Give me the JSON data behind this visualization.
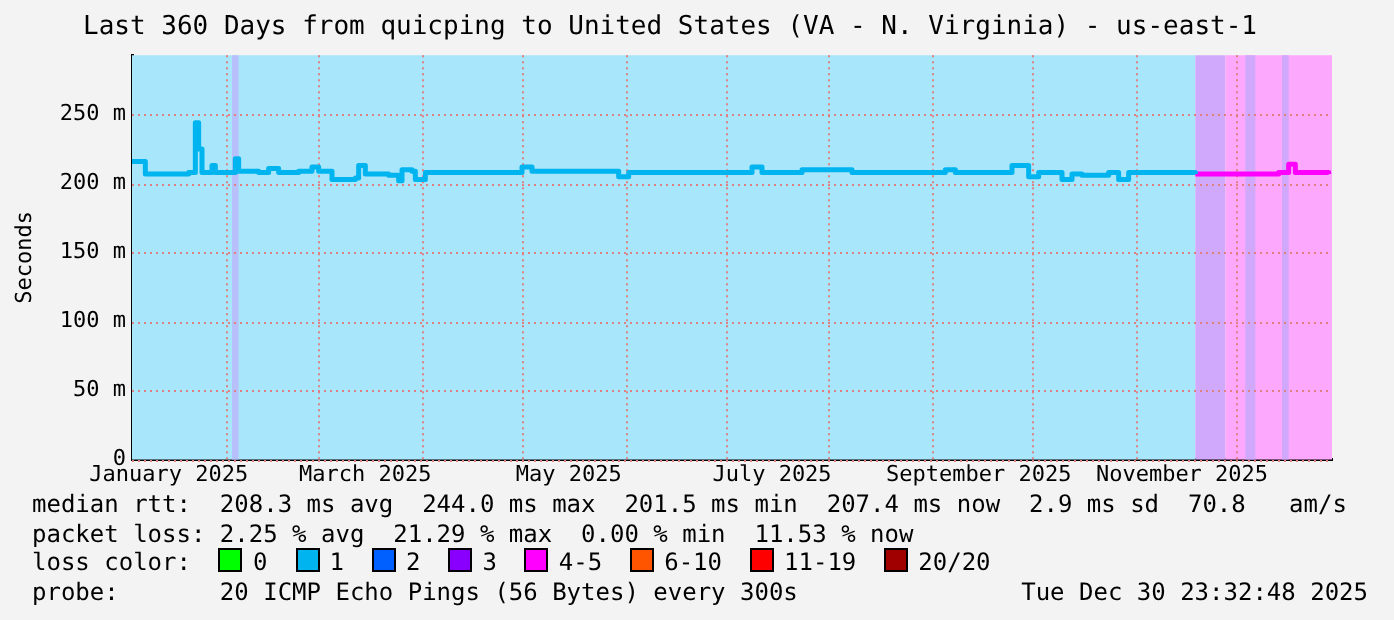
{
  "chart_data": {
    "type": "step",
    "title": "Last 360 Days from quicping to United States (VA - N. Virginia) - us-east-1",
    "ylabel": "Seconds",
    "x": [
      "2025-01-04",
      "2025-01-07",
      "2025-01-08",
      "2025-01-21",
      "2025-01-23",
      "2025-01-24",
      "2025-01-25",
      "2025-01-28",
      "2025-01-29",
      "2025-02-03",
      "2025-02-04",
      "2025-02-05",
      "2025-02-11",
      "2025-02-14",
      "2025-02-17",
      "2025-02-23",
      "2025-02-27",
      "2025-03-01",
      "2025-03-05",
      "2025-03-12",
      "2025-03-13",
      "2025-03-15",
      "2025-03-22",
      "2025-03-25",
      "2025-03-26",
      "2025-03-29",
      "2025-03-30",
      "2025-04-02",
      "2025-05-01",
      "2025-05-04",
      "2025-05-30",
      "2025-06-02",
      "2025-07-09",
      "2025-07-12",
      "2025-07-24",
      "2025-08-08",
      "2025-09-05",
      "2025-09-08",
      "2025-09-25",
      "2025-09-30",
      "2025-10-03",
      "2025-10-10",
      "2025-10-13",
      "2025-10-16",
      "2025-10-24",
      "2025-10-27",
      "2025-10-30",
      "2025-11-19"
    ],
    "series": [
      {
        "color": "#00b4f0",
        "values": [
          216,
          216,
          207,
          208,
          244,
          225,
          208,
          213,
          208,
          208,
          218,
          209,
          208,
          211,
          208,
          209,
          212,
          209,
          203,
          204,
          213,
          207,
          206,
          202,
          210,
          209,
          203,
          208,
          212,
          209,
          205,
          208,
          212,
          208,
          210,
          208,
          210,
          208,
          213,
          205,
          208,
          203,
          207,
          206,
          208,
          203,
          208,
          207
        ]
      },
      {
        "color": "#ff00ff",
        "x": [
          "2025-11-19",
          "2025-12-14",
          "2025-12-17",
          "2025-12-19",
          "2025-12-29"
        ],
        "values": [
          207,
          208,
          214,
          208,
          207
        ]
      }
    ],
    "xlim": [
      "2025-01-04",
      "2025-12-30"
    ],
    "xticks": [
      {
        "value": "2025-01-15",
        "label": "January 2025"
      },
      {
        "value": "2025-02-01",
        "label": null
      },
      {
        "value": "2025-03-01",
        "label": null
      },
      {
        "value": "2025-03-15",
        "label": "March 2025"
      },
      {
        "value": "2025-04-01",
        "label": null
      },
      {
        "value": "2025-05-01",
        "label": null
      },
      {
        "value": "2025-05-15",
        "label": "May 2025"
      },
      {
        "value": "2025-06-01",
        "label": null
      },
      {
        "value": "2025-07-01",
        "label": null
      },
      {
        "value": "2025-07-15",
        "label": "July 2025"
      },
      {
        "value": "2025-08-01",
        "label": null
      },
      {
        "value": "2025-09-01",
        "label": null
      },
      {
        "value": "2025-09-15",
        "label": "September 2025"
      },
      {
        "value": "2025-10-01",
        "label": null
      },
      {
        "value": "2025-11-01",
        "label": null
      },
      {
        "value": "2025-11-15",
        "label": "November 2025"
      },
      {
        "value": "2025-12-01",
        "label": null
      }
    ],
    "ylim": [
      0,
      293
    ],
    "yticks": [
      0,
      {
        "value": 50,
        "label": "50 m"
      },
      {
        "value": 100,
        "label": "100 m"
      },
      {
        "value": 150,
        "label": "150 m"
      },
      {
        "value": 200,
        "label": "200 m"
      },
      {
        "value": 250,
        "label": "250 m"
      }
    ],
    "bands": [
      {
        "axis": "x",
        "from": "2025-01-04",
        "to": "2025-11-19",
        "color": "#a8e6fc"
      },
      {
        "axis": "x",
        "from": "2025-02-03",
        "to": "2025-02-05",
        "color": "#b8c0fc"
      },
      {
        "axis": "x",
        "from": "2025-11-19",
        "to": "2025-11-28",
        "color": "#d0a8fc"
      },
      {
        "axis": "x",
        "from": "2025-11-28",
        "to": "2025-12-30",
        "color": "#fca8fc"
      },
      {
        "axis": "x",
        "from": "2025-12-04",
        "to": "2025-12-07",
        "color": "#d0a8fc"
      },
      {
        "axis": "x",
        "from": "2025-12-15",
        "to": "2025-12-17",
        "color": "#d0a8fc"
      }
    ],
    "grid": true,
    "legend": false,
    "marker": "none",
    "line_style": "solid",
    "annotations": [
      "median rtt:  208.3 ms avg  244.0 ms max  201.5 ms min  207.4 ms now  2.9 ms sd  70.8   am/s",
      "packet loss: 2.25 % avg  21.29 % max  0.00 % min  11.53 % now",
      "loss color:",
      "0",
      "1",
      "2",
      "3",
      "4-5",
      "6-10",
      "11-19",
      "20/20",
      "probe:       20 ICMP Echo Pings (56 Bytes) every 300s",
      "Tue Dec 30 23:32:48 2025"
    ]
  }
}
